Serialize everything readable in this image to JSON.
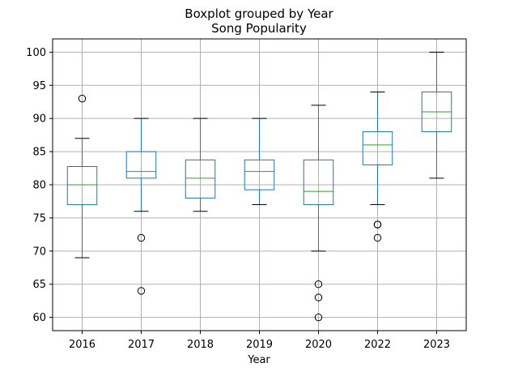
{
  "chart_data": {
    "type": "boxplot",
    "title": "Boxplot grouped by Year",
    "subtitle": "Song Popularity",
    "xlabel": "Year",
    "ylabel": "",
    "ylim": [
      58,
      102
    ],
    "yticks": [
      60,
      65,
      70,
      75,
      80,
      85,
      90,
      95,
      100
    ],
    "grid": true,
    "categories": [
      "2016",
      "2017",
      "2018",
      "2019",
      "2020",
      "2022",
      "2023"
    ],
    "boxes": [
      {
        "label": "2016",
        "whisker_low": 69,
        "q1": 77,
        "median": 80,
        "q3": 82.75,
        "whisker_high": 87,
        "outliers": [
          93
        ]
      },
      {
        "label": "2017",
        "whisker_low": 76,
        "q1": 81,
        "median": 82,
        "q3": 85,
        "whisker_high": 90,
        "outliers": [
          72,
          64
        ]
      },
      {
        "label": "2018",
        "whisker_low": 76,
        "q1": 78,
        "median": 81,
        "q3": 83.75,
        "whisker_high": 90,
        "outliers": []
      },
      {
        "label": "2019",
        "whisker_low": 77,
        "q1": 79.25,
        "median": 82,
        "q3": 83.75,
        "whisker_high": 90,
        "outliers": []
      },
      {
        "label": "2020",
        "whisker_low": 70,
        "q1": 77,
        "median": 79,
        "q3": 83.75,
        "whisker_high": 92,
        "outliers": [
          65,
          63,
          60
        ]
      },
      {
        "label": "2022",
        "whisker_low": 77,
        "q1": 83,
        "median": 86,
        "q3": 88,
        "whisker_high": 94,
        "outliers": [
          74,
          74,
          72
        ]
      },
      {
        "label": "2023",
        "whisker_low": 81,
        "q1": 88,
        "median": 91,
        "q3": 94,
        "whisker_high": 100,
        "outliers": []
      }
    ],
    "colors": {
      "box": "#1f77b4",
      "median": "#2ca02c",
      "whisker_cap": "#000000",
      "grid": "#b0b0b0",
      "outlier": "#000000"
    }
  }
}
